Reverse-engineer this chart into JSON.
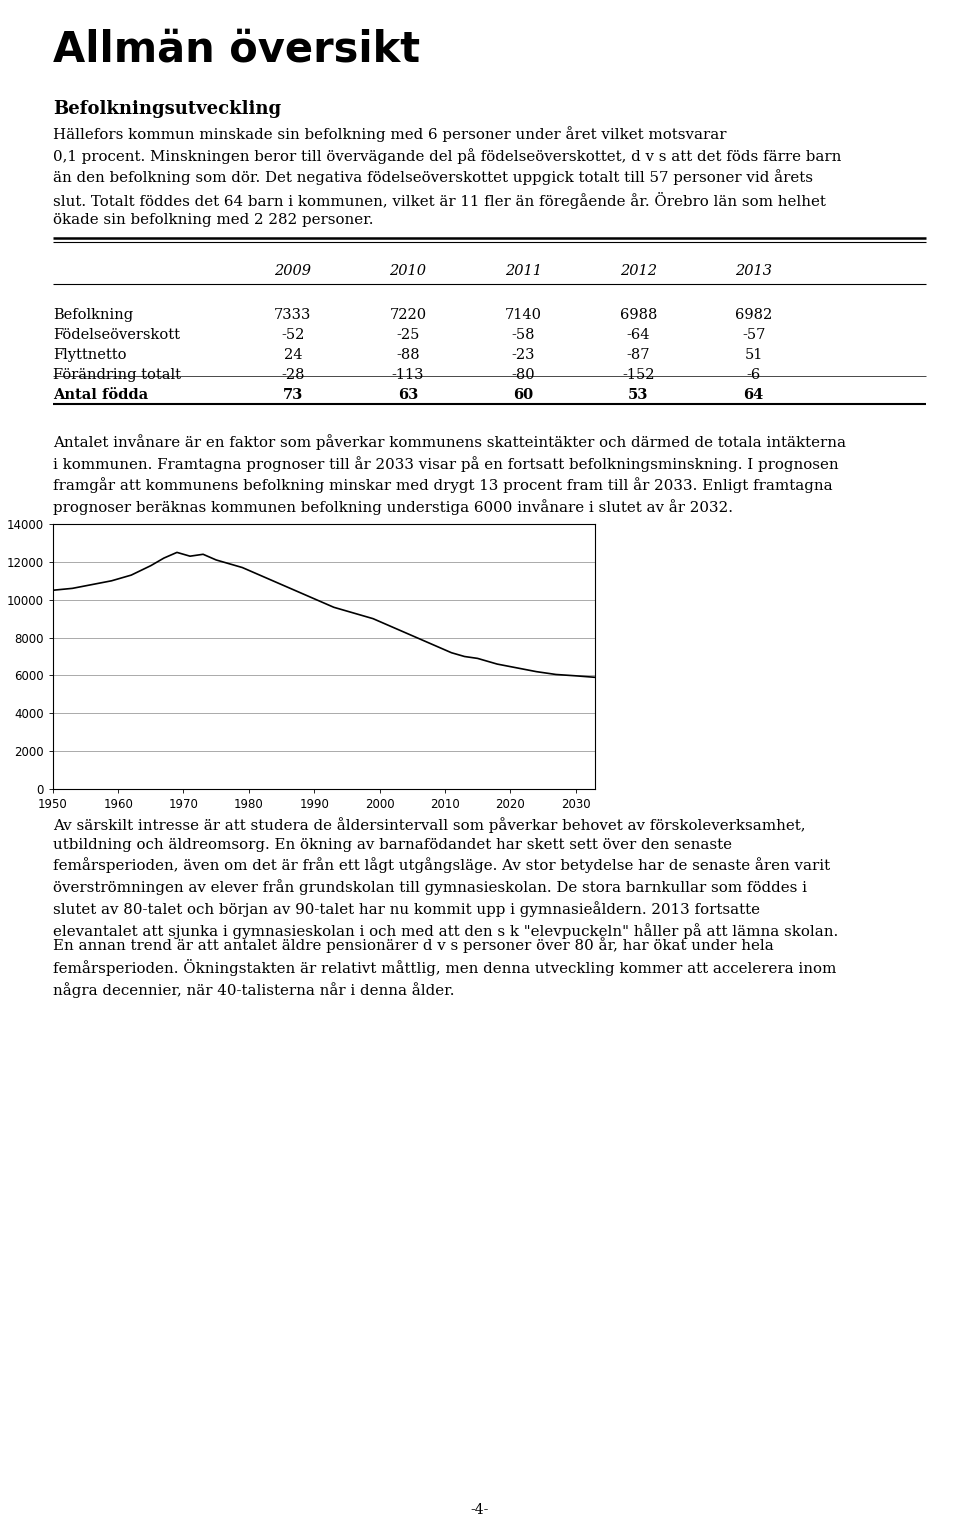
{
  "title": "Allmän översikt",
  "section1_title": "Befolkningsutveckling",
  "section1_text": "Hällefors kommun minskade sin befolkning med 6 personer under året vilket motsvarar\n0,1 procent. Minskningen beror till övervägande del på födelseöverskottet, d v s att det föds färre barn\nän den befolkning som dör. Det negativa födelseöverskottet uppgick totalt till 57 personer vid årets\nslut. Totalt föddes det 64 barn i kommunen, vilket är 11 fler än föregående år. Örebro län som helhet\nökade sin befolkning med 2 282 personer.",
  "table_years": [
    "2009",
    "2010",
    "2011",
    "2012",
    "2013"
  ],
  "table_rows": [
    {
      "label": "Befolkning",
      "values": [
        7333,
        7220,
        7140,
        6988,
        6982
      ],
      "bold": false
    },
    {
      "label": "Födelseöverskott",
      "values": [
        -52,
        -25,
        -58,
        -64,
        -57
      ],
      "bold": false
    },
    {
      "label": "Flyttnetto",
      "values": [
        24,
        -88,
        -23,
        -87,
        51
      ],
      "bold": false
    },
    {
      "label": "Förändring totalt",
      "values": [
        -28,
        -113,
        -80,
        -152,
        -6
      ],
      "bold": false
    },
    {
      "label": "Antal födda",
      "values": [
        73,
        63,
        60,
        53,
        64
      ],
      "bold": true
    }
  ],
  "section2_text": "Antalet invånare är en faktor som påverkar kommunens skatteintäkter och därmed de totala intäkterna\ni kommunen. Framtagna prognoser till år 2033 visar på en fortsatt befolkningsminskning. I prognosen\nframgår att kommunens befolkning minskar med drygt 13 procent fram till år 2033. Enligt framtagna\nprognoser beräknas kommunen befolkning understiga 6000 invånare i slutet av år 2032.",
  "chart_x": [
    1950,
    1953,
    1956,
    1959,
    1962,
    1965,
    1967,
    1969,
    1971,
    1973,
    1975,
    1977,
    1979,
    1981,
    1983,
    1985,
    1987,
    1989,
    1991,
    1993,
    1995,
    1997,
    1999,
    2001,
    2003,
    2005,
    2007,
    2009,
    2011,
    2013,
    2015,
    2018,
    2021,
    2024,
    2027,
    2030,
    2033
  ],
  "chart_y": [
    10500,
    10600,
    10800,
    11000,
    11300,
    11800,
    12200,
    12500,
    12300,
    12400,
    12100,
    11900,
    11700,
    11400,
    11100,
    10800,
    10500,
    10200,
    9900,
    9600,
    9400,
    9200,
    9000,
    8700,
    8400,
    8100,
    7800,
    7500,
    7200,
    7000,
    6900,
    6600,
    6400,
    6200,
    6050,
    5980,
    5900
  ],
  "chart_ylim": [
    0,
    14000
  ],
  "chart_yticks": [
    0,
    2000,
    4000,
    6000,
    8000,
    10000,
    12000,
    14000
  ],
  "chart_xticks": [
    1950,
    1960,
    1970,
    1980,
    1990,
    2000,
    2010,
    2020,
    2030
  ],
  "section3_text": "Av särskilt intresse är att studera de åldersintervall som påverkar behovet av förskoleverksamhet,\nutbildning och äldreomsorg. En ökning av barnafödandet har skett sett över den senaste\nfemårsperioden, även om det är från ett lågt utgångsläge. Av stor betydelse har de senaste åren varit\növerströmningen av elever från grundskolan till gymnasieskolan. De stora barnkullar som föddes i\nslutet av 80-talet och början av 90-talet har nu kommit upp i gymnasieåldern. 2013 fortsatte\nelevantalet att sjunka i gymnasieskolan i och med att den s k \"elevpuckeln\" håller på att lämna skolan.",
  "section4_text": "En annan trend är att antalet äldre pensionärer d v s personer över 80 år, har ökat under hela\nfemårsperioden. Ökningstakten är relativt måttlig, men denna utveckling kommer att accelerera inom\nnågra decennier, när 40-talisterna når i denna ålder.",
  "page_number": "-4-",
  "bg_color": "#ffffff",
  "text_color": "#000000"
}
